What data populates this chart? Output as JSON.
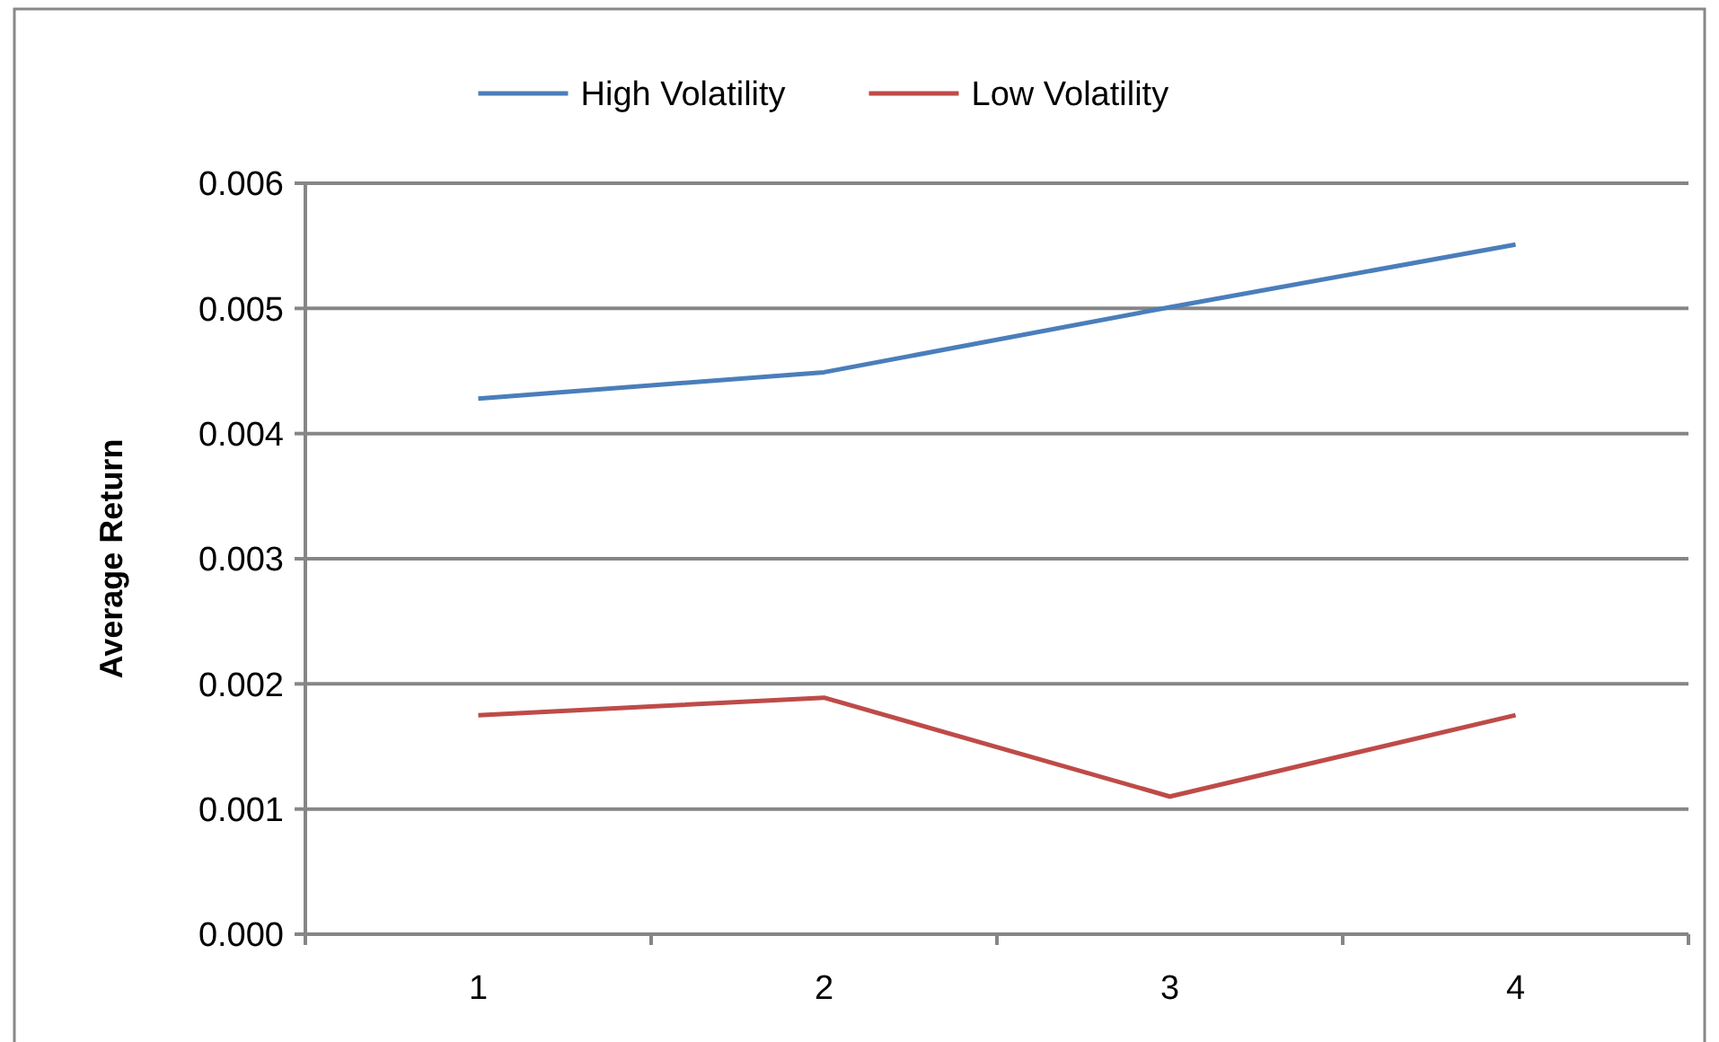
{
  "chart_data": {
    "type": "line",
    "ylabel": "Average Return",
    "categories": [
      "1",
      "2",
      "3",
      "4"
    ],
    "series": [
      {
        "name": "High Volatility",
        "color": "#4a7ebb",
        "values": [
          0.00428,
          0.00449,
          0.00501,
          0.00551
        ]
      },
      {
        "name": "Low Volatility",
        "color": "#be4b48",
        "values": [
          0.00175,
          0.00189,
          0.0011,
          0.00175
        ]
      }
    ],
    "ylim": [
      0,
      0.006
    ],
    "yticks": [
      {
        "value": 0,
        "label": "0.000"
      },
      0.001,
      0.002,
      0.003,
      0.004,
      0.005,
      0.006
    ],
    "grid": "y",
    "legend": "top",
    "marker": "none",
    "line_style": "solid"
  }
}
